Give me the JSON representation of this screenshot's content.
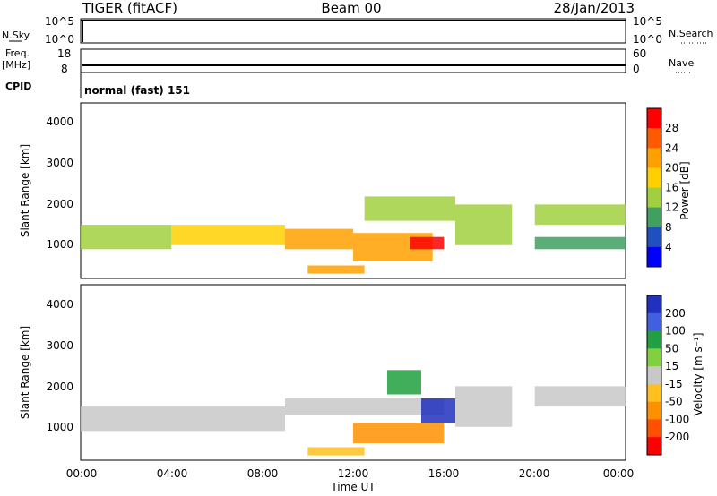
{
  "header": {
    "station": "TIGER (fitACF)",
    "beam": "Beam 00",
    "date": "28/Jan/2013"
  },
  "top_panels": {
    "nsky": {
      "label": "N.Sky",
      "ticks": [
        "10^5",
        "10^0"
      ]
    },
    "nsearch": {
      "label": "N.Search",
      "ticks": [
        "10^5",
        "10^0"
      ]
    },
    "freq": {
      "label_line1": "Freq.",
      "label_line2": "[MHz]",
      "ticks": [
        "18",
        "8"
      ]
    },
    "nave": {
      "label": "Nave",
      "ticks": [
        "60",
        "0"
      ]
    },
    "cpid": {
      "label": "CPID",
      "value": "normal (fast) 151"
    }
  },
  "power_panel": {
    "ylabel": "Slant Range [km]",
    "yticks": [
      "4000",
      "3000",
      "2000",
      "1000"
    ],
    "colorbar_label": "Power [dB]",
    "colorbar_ticks": [
      "28",
      "24",
      "20",
      "16",
      "12",
      "8",
      "4"
    ],
    "colorbar_colors": [
      "#ff0000",
      "#ff5a00",
      "#ffa000",
      "#ffd000",
      "#a0d040",
      "#40a060",
      "#2050c0",
      "#0000ff"
    ]
  },
  "velocity_panel": {
    "ylabel": "Slant Range [km]",
    "yticks": [
      "4000",
      "3000",
      "2000",
      "1000"
    ],
    "colorbar_label": "Velocity [m s⁻¹]",
    "colorbar_ticks": [
      "200",
      "100",
      "50",
      "15",
      "-15",
      "-50",
      "-100",
      "-200"
    ],
    "colorbar_colors": [
      "#2030c0",
      "#4060e0",
      "#20a040",
      "#80d040",
      "#c8c8c8",
      "#ffc020",
      "#ff9000",
      "#ff5000",
      "#ff0000"
    ]
  },
  "xaxis": {
    "label": "Time UT",
    "ticks": [
      "00:00",
      "04:00",
      "08:00",
      "12:00",
      "16:00",
      "20:00",
      "00:00"
    ]
  },
  "chart_data": {
    "type": "heatmap",
    "title": "TIGER (fitACF) Beam 00 28/Jan/2013",
    "xlabel": "Time UT",
    "ylabel": "Slant Range [km]",
    "xlim": [
      0,
      24
    ],
    "ylim": [
      180,
      4500
    ],
    "panels": [
      {
        "name": "Power",
        "colorbar_label": "Power [dB]",
        "colorbar_range": [
          0,
          32
        ],
        "regions": [
          {
            "t0": 0.0,
            "t1": 4.0,
            "r0": 900,
            "r1": 1500,
            "value": 14
          },
          {
            "t0": 4.0,
            "t1": 9.0,
            "r0": 1000,
            "r1": 1500,
            "value": 18
          },
          {
            "t0": 9.0,
            "t1": 12.0,
            "r0": 900,
            "r1": 1400,
            "value": 22
          },
          {
            "t0": 10.0,
            "t1": 12.5,
            "r0": 300,
            "r1": 500,
            "value": 24
          },
          {
            "t0": 12.0,
            "t1": 15.5,
            "r0": 600,
            "r1": 1300,
            "value": 22
          },
          {
            "t0": 14.5,
            "t1": 16.0,
            "r0": 900,
            "r1": 1200,
            "value": 30
          },
          {
            "t0": 12.5,
            "t1": 16.5,
            "r0": 1600,
            "r1": 2200,
            "value": 12
          },
          {
            "t0": 16.5,
            "t1": 19.0,
            "r0": 1000,
            "r1": 2000,
            "value": 12
          },
          {
            "t0": 20.0,
            "t1": 24.0,
            "r0": 1500,
            "r1": 2000,
            "value": 12
          },
          {
            "t0": 20.0,
            "t1": 24.0,
            "r0": 900,
            "r1": 1200,
            "value": 10
          }
        ]
      },
      {
        "name": "Velocity",
        "colorbar_label": "Velocity [m s⁻¹]",
        "colorbar_range": [
          -200,
          200
        ],
        "regions": [
          {
            "t0": 0.0,
            "t1": 9.0,
            "r0": 900,
            "r1": 1500,
            "value": 0
          },
          {
            "t0": 9.0,
            "t1": 16.0,
            "r0": 1300,
            "r1": 1700,
            "value": 0
          },
          {
            "t0": 10.0,
            "t1": 12.5,
            "r0": 300,
            "r1": 500,
            "value": -60
          },
          {
            "t0": 12.0,
            "t1": 16.0,
            "r0": 600,
            "r1": 1100,
            "value": -80
          },
          {
            "t0": 15.0,
            "t1": 16.5,
            "r0": 1100,
            "r1": 1700,
            "value": 180
          },
          {
            "t0": 13.5,
            "t1": 15.0,
            "r0": 1800,
            "r1": 2400,
            "value": 120
          },
          {
            "t0": 16.5,
            "t1": 19.0,
            "r0": 1000,
            "r1": 2000,
            "value": 0
          },
          {
            "t0": 20.0,
            "t1": 24.0,
            "r0": 1500,
            "r1": 2000,
            "value": 0
          }
        ]
      }
    ]
  }
}
